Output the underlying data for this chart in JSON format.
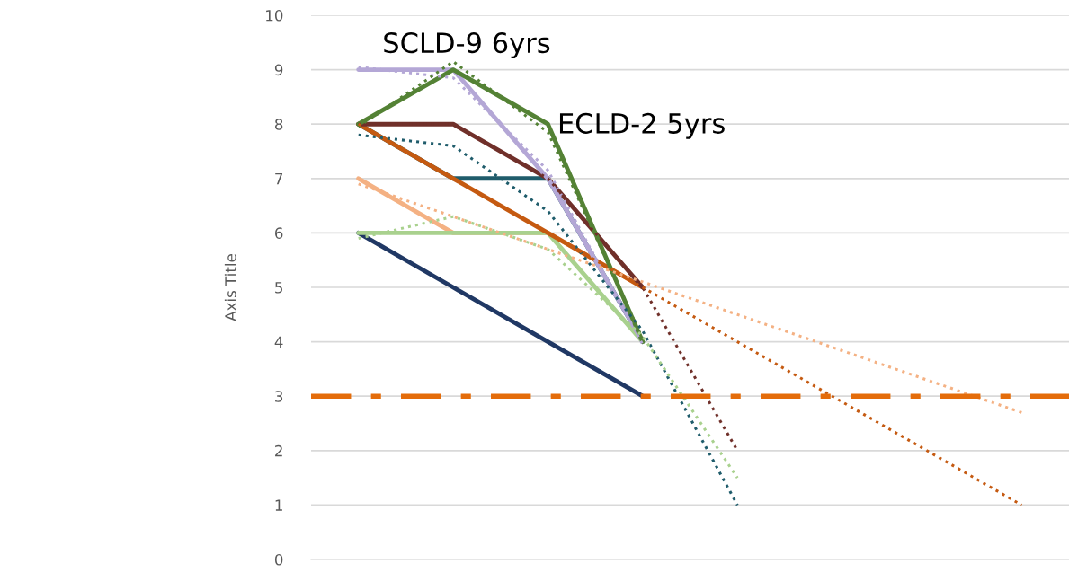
{
  "chart_data": {
    "type": "line",
    "ylabel": "Axis Title",
    "categories": [
      null,
      null,
      null,
      null,
      null,
      null,
      null,
      null
    ],
    "ylim": [
      0,
      10
    ],
    "yticks": [
      0,
      1,
      2,
      3,
      4,
      5,
      6,
      7,
      8,
      9,
      10
    ],
    "grid": "y",
    "tick_labels": "y",
    "legend": false,
    "marker": "none",
    "series": [
      {
        "color": "#1f5c6b",
        "values": [
          8,
          7,
          7,
          4,
          null,
          null,
          null,
          null
        ]
      },
      {
        "color": "#203864",
        "values": [
          6,
          5,
          4,
          3,
          null,
          null,
          null,
          null
        ]
      },
      {
        "color": "#f4b183",
        "values": [
          7,
          6,
          6,
          5,
          null,
          null,
          null,
          null
        ]
      },
      {
        "color": "#a9d18e",
        "values": [
          6,
          6,
          6,
          4,
          null,
          null,
          null,
          null
        ]
      },
      {
        "color": "#c55a11",
        "values": [
          8,
          7,
          6,
          5,
          null,
          null,
          null,
          null
        ]
      },
      {
        "color": "#70302a",
        "values": [
          8,
          8,
          7,
          5,
          null,
          null,
          null,
          null
        ]
      },
      {
        "color": "#b4a7d6",
        "values": [
          9,
          9,
          7,
          4,
          null,
          null,
          null,
          null
        ]
      },
      {
        "color": "#548235",
        "values": [
          8,
          9,
          8,
          4,
          null,
          null,
          null,
          null
        ]
      },
      {
        "type": "line",
        "line_style": "dotted",
        "color": "#b4a7d6",
        "values": [
          9.05,
          8.85,
          7.15,
          3.95,
          null,
          null,
          null,
          null
        ]
      },
      {
        "type": "line",
        "line_style": "dotted",
        "color": "#548235",
        "values": [
          7.95,
          9.15,
          7.85,
          4.05,
          null,
          null,
          null,
          null
        ]
      },
      {
        "type": "line",
        "line_style": "dotted",
        "color": "#70302a",
        "values": [
          8.0,
          8.0,
          7.0,
          5.0,
          2.0,
          null,
          null,
          null
        ]
      },
      {
        "type": "line",
        "line_style": "dotted",
        "color": "#1f5c6b",
        "values": [
          7.8,
          7.6,
          6.4,
          4.2,
          1.0,
          null,
          null,
          null
        ]
      },
      {
        "type": "line",
        "line_style": "dotted",
        "color": "#a9d18e",
        "values": [
          5.9,
          6.3,
          5.7,
          4.1,
          1.5,
          null,
          null,
          null
        ]
      },
      {
        "type": "line",
        "line_style": "dotted",
        "color": "#f4b183",
        "values": [
          6.9,
          6.3,
          5.7,
          5.1,
          4.5,
          3.9,
          3.3,
          2.7
        ]
      },
      {
        "type": "line",
        "line_style": "dotted",
        "color": "#c55a11",
        "values": [
          8,
          7,
          6,
          5,
          4,
          3,
          2,
          1
        ]
      }
    ],
    "ref_lines": [
      {
        "axis": "y",
        "value": 3,
        "color": "#e46c0a",
        "line_style": "dashdot"
      }
    ],
    "annotations": [
      "SCLD-9 6yrs",
      "ECLD-2 5yrs"
    ]
  }
}
